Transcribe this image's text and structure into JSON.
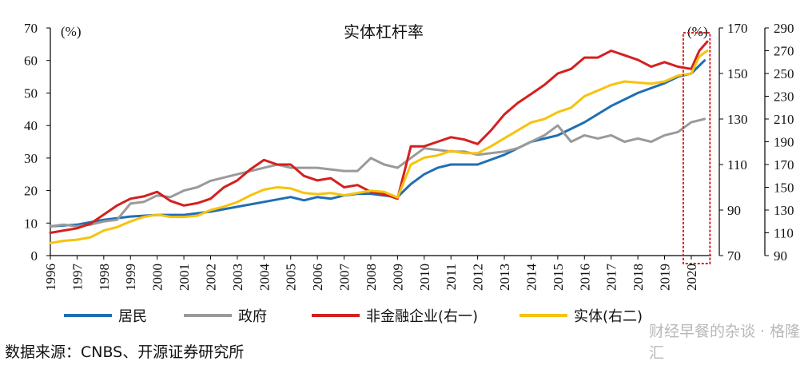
{
  "chart_data": {
    "type": "line",
    "title": "实体杠杆率",
    "unit_left": "(%)",
    "unit_right": "(%)",
    "x": [
      1996,
      1997,
      1998,
      1999,
      2000,
      2001,
      2002,
      2003,
      2004,
      2005,
      2006,
      2007,
      2008,
      2009,
      2010,
      2011,
      2012,
      2013,
      2014,
      2015,
      2016,
      2017,
      2018,
      2019,
      2020
    ],
    "x_ticks": [
      "1996",
      "1997",
      "1998",
      "1999",
      "2000",
      "2001",
      "2002",
      "2003",
      "2004",
      "2005",
      "2006",
      "2007",
      "2008",
      "2009",
      "2010",
      "2011",
      "2012",
      "2013",
      "2014",
      "2015",
      "2016",
      "2017",
      "2018",
      "2019",
      "2020"
    ],
    "left_axis": {
      "ylim": [
        0,
        70
      ],
      "ticks": [
        "0",
        "10",
        "20",
        "30",
        "40",
        "50",
        "60",
        "70"
      ]
    },
    "right1_axis": {
      "ylim": [
        70,
        170
      ],
      "ticks": [
        "70",
        "90",
        "110",
        "130",
        "150",
        "170"
      ]
    },
    "right2_axis": {
      "ylim": [
        90,
        290
      ],
      "ticks": [
        "90",
        "110",
        "130",
        "150",
        "170",
        "190",
        "210",
        "230",
        "250",
        "270",
        "290"
      ]
    },
    "series": [
      {
        "name": "居民",
        "axis": "left",
        "color": "#1f6fb4",
        "points": [
          [
            1996.0,
            9
          ],
          [
            1997.0,
            9.5
          ],
          [
            1998.0,
            11
          ],
          [
            1999.0,
            12
          ],
          [
            2000.0,
            12.5
          ],
          [
            2001.0,
            12.5
          ],
          [
            2002.0,
            13.5
          ],
          [
            2003.0,
            15
          ],
          [
            2004.0,
            16.5
          ],
          [
            2005.0,
            18
          ],
          [
            2005.5,
            17
          ],
          [
            2006.0,
            18
          ],
          [
            2006.5,
            17.5
          ],
          [
            2007.0,
            18.5
          ],
          [
            2007.5,
            19
          ],
          [
            2008.0,
            19
          ],
          [
            2008.5,
            18.5
          ],
          [
            2009.0,
            18
          ],
          [
            2009.5,
            22
          ],
          [
            2010.0,
            25
          ],
          [
            2010.5,
            27
          ],
          [
            2011.0,
            28
          ],
          [
            2012.0,
            28
          ],
          [
            2013.0,
            31
          ],
          [
            2014.0,
            35
          ],
          [
            2015.0,
            37
          ],
          [
            2016.0,
            41
          ],
          [
            2017.0,
            46
          ],
          [
            2018.0,
            50
          ],
          [
            2019.0,
            53
          ],
          [
            2019.5,
            55
          ],
          [
            2020.0,
            56
          ],
          [
            2020.5,
            60
          ]
        ]
      },
      {
        "name": "政府",
        "axis": "left",
        "color": "#9a9a9a",
        "points": [
          [
            1996.0,
            9
          ],
          [
            1996.5,
            9.5
          ],
          [
            1997.0,
            9
          ],
          [
            1997.5,
            9.5
          ],
          [
            1998.0,
            10.5
          ],
          [
            1998.5,
            11
          ],
          [
            1999.0,
            16
          ],
          [
            1999.5,
            16.5
          ],
          [
            2000.0,
            18.5
          ],
          [
            2000.5,
            18
          ],
          [
            2001.0,
            20
          ],
          [
            2001.5,
            21
          ],
          [
            2002.0,
            23
          ],
          [
            2003.0,
            25
          ],
          [
            2004.0,
            27
          ],
          [
            2004.5,
            28
          ],
          [
            2005.0,
            27
          ],
          [
            2006.0,
            27
          ],
          [
            2007.0,
            26
          ],
          [
            2007.5,
            26
          ],
          [
            2008.0,
            30
          ],
          [
            2008.5,
            28
          ],
          [
            2009.0,
            27
          ],
          [
            2010.0,
            33
          ],
          [
            2011.0,
            32
          ],
          [
            2011.5,
            32
          ],
          [
            2012.0,
            31
          ],
          [
            2012.5,
            31.5
          ],
          [
            2013.0,
            32
          ],
          [
            2013.5,
            33
          ],
          [
            2014.0,
            35
          ],
          [
            2014.5,
            37
          ],
          [
            2015.0,
            40
          ],
          [
            2015.5,
            35
          ],
          [
            2016.0,
            37
          ],
          [
            2016.5,
            36
          ],
          [
            2017.0,
            37
          ],
          [
            2017.5,
            35
          ],
          [
            2018.0,
            36
          ],
          [
            2018.5,
            35
          ],
          [
            2019.0,
            37
          ],
          [
            2019.5,
            38
          ],
          [
            2020.0,
            41
          ],
          [
            2020.5,
            42
          ]
        ]
      },
      {
        "name": "非金融企业(右一)",
        "axis": "right1",
        "color": "#d42020",
        "points": [
          [
            1996.0,
            80
          ],
          [
            1996.5,
            81
          ],
          [
            1997.0,
            82
          ],
          [
            1997.5,
            84
          ],
          [
            1998.0,
            88
          ],
          [
            1998.5,
            92
          ],
          [
            1999.0,
            95
          ],
          [
            1999.5,
            96
          ],
          [
            2000.0,
            98
          ],
          [
            2000.5,
            94
          ],
          [
            2001.0,
            92
          ],
          [
            2001.5,
            93
          ],
          [
            2002.0,
            95
          ],
          [
            2002.5,
            100
          ],
          [
            2003.0,
            103
          ],
          [
            2003.5,
            108
          ],
          [
            2004.0,
            112
          ],
          [
            2004.5,
            110
          ],
          [
            2005.0,
            110
          ],
          [
            2005.5,
            105
          ],
          [
            2006.0,
            103
          ],
          [
            2006.5,
            104
          ],
          [
            2007.0,
            100
          ],
          [
            2007.5,
            101
          ],
          [
            2008.0,
            98
          ],
          [
            2008.5,
            97
          ],
          [
            2009.0,
            95
          ],
          [
            2009.5,
            118
          ],
          [
            2010.0,
            118
          ],
          [
            2010.5,
            120
          ],
          [
            2011.0,
            122
          ],
          [
            2011.5,
            121
          ],
          [
            2012.0,
            119
          ],
          [
            2012.5,
            125
          ],
          [
            2013.0,
            132
          ],
          [
            2013.5,
            137
          ],
          [
            2014.0,
            141
          ],
          [
            2014.5,
            145
          ],
          [
            2015.0,
            150
          ],
          [
            2015.5,
            152
          ],
          [
            2016.0,
            157
          ],
          [
            2016.5,
            157
          ],
          [
            2017.0,
            160
          ],
          [
            2017.5,
            158
          ],
          [
            2018.0,
            156
          ],
          [
            2018.5,
            153
          ],
          [
            2019.0,
            155
          ],
          [
            2019.5,
            153
          ],
          [
            2020.0,
            152
          ],
          [
            2020.3,
            160
          ],
          [
            2020.6,
            164
          ]
        ]
      },
      {
        "name": "实体(右二)",
        "axis": "right2",
        "color": "#f6c30e",
        "points": [
          [
            1996.0,
            101
          ],
          [
            1996.5,
            103
          ],
          [
            1997.0,
            104
          ],
          [
            1997.5,
            106
          ],
          [
            1998.0,
            112
          ],
          [
            1998.5,
            115
          ],
          [
            1999.0,
            120
          ],
          [
            1999.5,
            124
          ],
          [
            2000.0,
            126
          ],
          [
            2000.5,
            124
          ],
          [
            2001.0,
            124
          ],
          [
            2001.5,
            125
          ],
          [
            2002.0,
            130
          ],
          [
            2002.5,
            133
          ],
          [
            2003.0,
            137
          ],
          [
            2003.5,
            143
          ],
          [
            2004.0,
            148
          ],
          [
            2004.5,
            150
          ],
          [
            2005.0,
            149
          ],
          [
            2005.5,
            145
          ],
          [
            2006.0,
            144
          ],
          [
            2006.5,
            145
          ],
          [
            2007.0,
            143
          ],
          [
            2007.5,
            145
          ],
          [
            2008.0,
            147
          ],
          [
            2008.5,
            146
          ],
          [
            2009.0,
            141
          ],
          [
            2009.5,
            170
          ],
          [
            2010.0,
            176
          ],
          [
            2010.5,
            178
          ],
          [
            2011.0,
            182
          ],
          [
            2011.5,
            180
          ],
          [
            2012.0,
            180
          ],
          [
            2012.5,
            186
          ],
          [
            2013.0,
            193
          ],
          [
            2013.5,
            200
          ],
          [
            2014.0,
            207
          ],
          [
            2014.5,
            210
          ],
          [
            2015.0,
            216
          ],
          [
            2015.5,
            220
          ],
          [
            2016.0,
            230
          ],
          [
            2016.5,
            235
          ],
          [
            2017.0,
            240
          ],
          [
            2017.5,
            243
          ],
          [
            2018.0,
            242
          ],
          [
            2018.5,
            241
          ],
          [
            2019.0,
            243
          ],
          [
            2019.5,
            248
          ],
          [
            2020.0,
            250
          ],
          [
            2020.3,
            265
          ],
          [
            2020.6,
            270
          ]
        ]
      }
    ],
    "legend": [
      "居民",
      "政府",
      "非金融企业(右一)",
      "实体(右二)"
    ],
    "legend_placement": "bottom",
    "highlight_box": {
      "x_from": 2019.7,
      "x_to": 2020.7,
      "color": "#d42020"
    }
  },
  "source": "数据来源：CNBS、开源证券研究所",
  "watermark": "财经早餐的杂谈 · 格隆汇"
}
